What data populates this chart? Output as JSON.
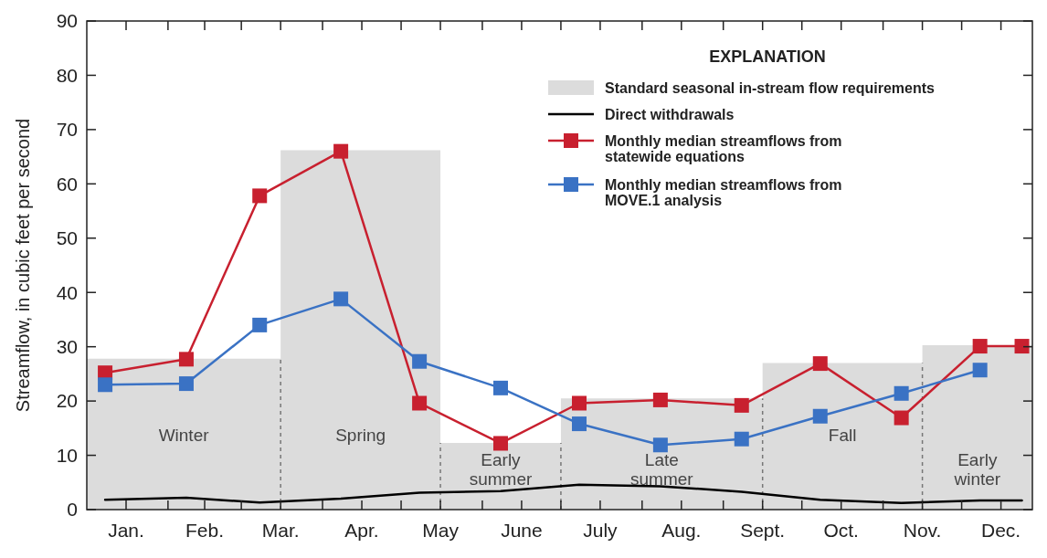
{
  "chart_data": {
    "type": "line",
    "ylabel": "Streamflow, in cubic feet per second",
    "legend_title": "EXPLANATION",
    "xlim": [
      "--01-01",
      "--12-28"
    ],
    "ylim": [
      0,
      90
    ],
    "yticks": [
      0,
      10,
      20,
      30,
      40,
      50,
      60,
      70,
      80,
      90
    ],
    "xticks": [
      {
        "value": "--01-16",
        "label": "Jan."
      },
      {
        "value": "--02-01",
        "label": null
      },
      {
        "value": "--02-15",
        "label": "Feb."
      },
      {
        "value": "--03-01",
        "label": null
      },
      {
        "value": "--03-16",
        "label": "Mar."
      },
      {
        "value": "--04-01",
        "label": null
      },
      {
        "value": "--04-16",
        "label": "Apr."
      },
      {
        "value": "--05-01",
        "label": null
      },
      {
        "value": "--05-16",
        "label": "May"
      },
      {
        "value": "--06-01",
        "label": null
      },
      {
        "value": "--06-16",
        "label": "June"
      },
      {
        "value": "--07-01",
        "label": null
      },
      {
        "value": "--07-16",
        "label": "July"
      },
      {
        "value": "--08-01",
        "label": null
      },
      {
        "value": "--08-16",
        "label": "Aug."
      },
      {
        "value": "--09-01",
        "label": null
      },
      {
        "value": "--09-16",
        "label": "Sept."
      },
      {
        "value": "--10-01",
        "label": null
      },
      {
        "value": "--10-16",
        "label": "Oct."
      },
      {
        "value": "--11-01",
        "label": null
      },
      {
        "value": "--11-16",
        "label": "Nov."
      },
      {
        "value": "--12-01",
        "label": null
      },
      {
        "value": "--12-16",
        "label": "Dec."
      }
    ],
    "marker": "square",
    "legend": "top right",
    "series": [
      {
        "name": "Standard seasonal in-stream flow requirements",
        "type": "area",
        "color": "#dcdcdc",
        "marker": "none",
        "x": [
          "--01-01",
          "--03-16",
          "--03-16",
          "--05-16",
          "--05-16",
          "--07-01",
          "--07-01",
          "--09-16",
          "--09-16",
          "--11-16",
          "--11-16",
          "--12-28"
        ],
        "values": [
          27.8,
          27.8,
          66.2,
          66.2,
          12.3,
          12.3,
          20.5,
          20.5,
          27,
          27,
          30.3,
          30.3
        ]
      },
      {
        "name": "Direct withdrawals",
        "color": "#000000",
        "marker": "none",
        "x": [
          "--01-08",
          "--02-08",
          "--03-08",
          "--04-08",
          "--05-08",
          "--06-08",
          "--07-08",
          "--08-08",
          "--09-08",
          "--10-08",
          "--11-08",
          "--12-08",
          "--12-24"
        ],
        "values": [
          1.8,
          2.2,
          1.3,
          2.0,
          3.1,
          3.4,
          4.6,
          4.3,
          3.3,
          1.8,
          1.2,
          1.7,
          1.7
        ]
      },
      {
        "name": "Monthly median streamflows from statewide equations",
        "color": "#c8202f",
        "x": [
          "--01-08",
          "--02-08",
          "--03-08",
          "--04-08",
          "--05-08",
          "--06-08",
          "--07-08",
          "--08-08",
          "--09-08",
          "--10-08",
          "--11-08",
          "--12-08",
          "--12-24"
        ],
        "values": [
          25.2,
          27.7,
          57.8,
          66,
          19.6,
          12.2,
          19.6,
          20.2,
          19.2,
          26.9,
          16.9,
          30.1,
          30.1
        ]
      },
      {
        "name": "Monthly median streamflows from MOVE.1 analysis",
        "color": "#3a72c4",
        "x": [
          "--01-08",
          "--02-08",
          "--03-08",
          "--04-08",
          "--05-08",
          "--06-08",
          "--07-08",
          "--08-08",
          "--09-08",
          "--10-08",
          "--11-08",
          "--12-08"
        ],
        "values": [
          23,
          23.2,
          34,
          38.8,
          27.3,
          22.4,
          15.8,
          11.9,
          13,
          17.2,
          21.4,
          25.7
        ]
      }
    ],
    "annotations": [
      "Winter",
      "Spring",
      "Early summer",
      "Late summer",
      "Fall",
      "Early winter"
    ]
  }
}
